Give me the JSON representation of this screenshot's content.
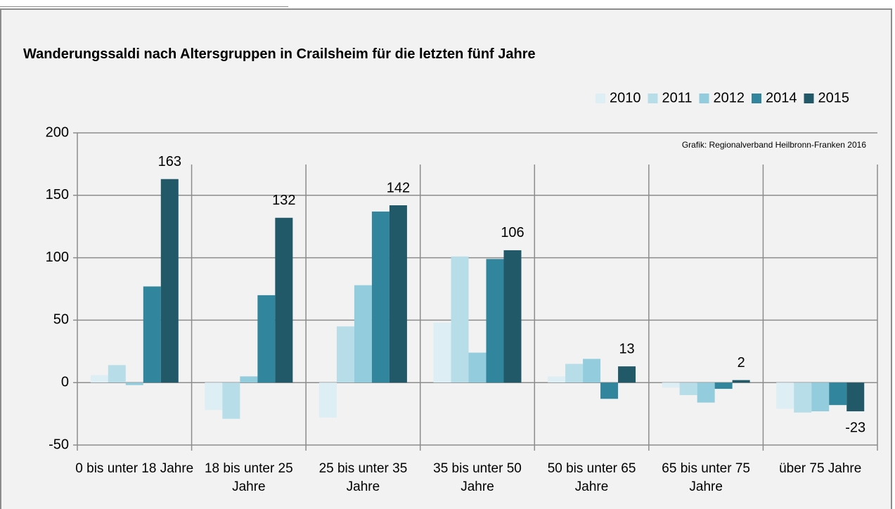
{
  "chart_data": {
    "type": "bar",
    "title": "Wanderungssaldi nach Altersgruppen in Crailsheim für die letzten fünf Jahre",
    "annotation": "Grafik: Regionalverband Heilbronn-Franken 2016",
    "categories": [
      "0 bis unter 18 Jahre",
      "18 bis unter 25 Jahre",
      "25 bis unter 35 Jahre",
      "35 bis unter 50 Jahre",
      "50 bis unter 65 Jahre",
      "65 bis unter 75 Jahre",
      "über 75 Jahre"
    ],
    "series": [
      {
        "name": "2010",
        "color": "#ddeef4",
        "values": [
          6,
          -22,
          -28,
          48,
          5,
          -4,
          -21
        ]
      },
      {
        "name": "2011",
        "color": "#b7dde8",
        "values": [
          14,
          -29,
          45,
          101,
          15,
          -10,
          -24
        ]
      },
      {
        "name": "2012",
        "color": "#93cddd",
        "values": [
          -2,
          5,
          78,
          24,
          19,
          -16,
          -23
        ]
      },
      {
        "name": "2014",
        "color": "#31859c",
        "values": [
          77,
          70,
          137,
          99,
          -13,
          -5,
          -18
        ]
      },
      {
        "name": "2015",
        "color": "#215968",
        "values": [
          163,
          132,
          142,
          106,
          13,
          2,
          -23
        ],
        "data_labels": true
      }
    ],
    "ylim": [
      -50,
      200
    ],
    "yticks": [
      -50,
      0,
      50,
      100,
      150,
      200
    ],
    "grid": true,
    "legend": "top-right"
  }
}
